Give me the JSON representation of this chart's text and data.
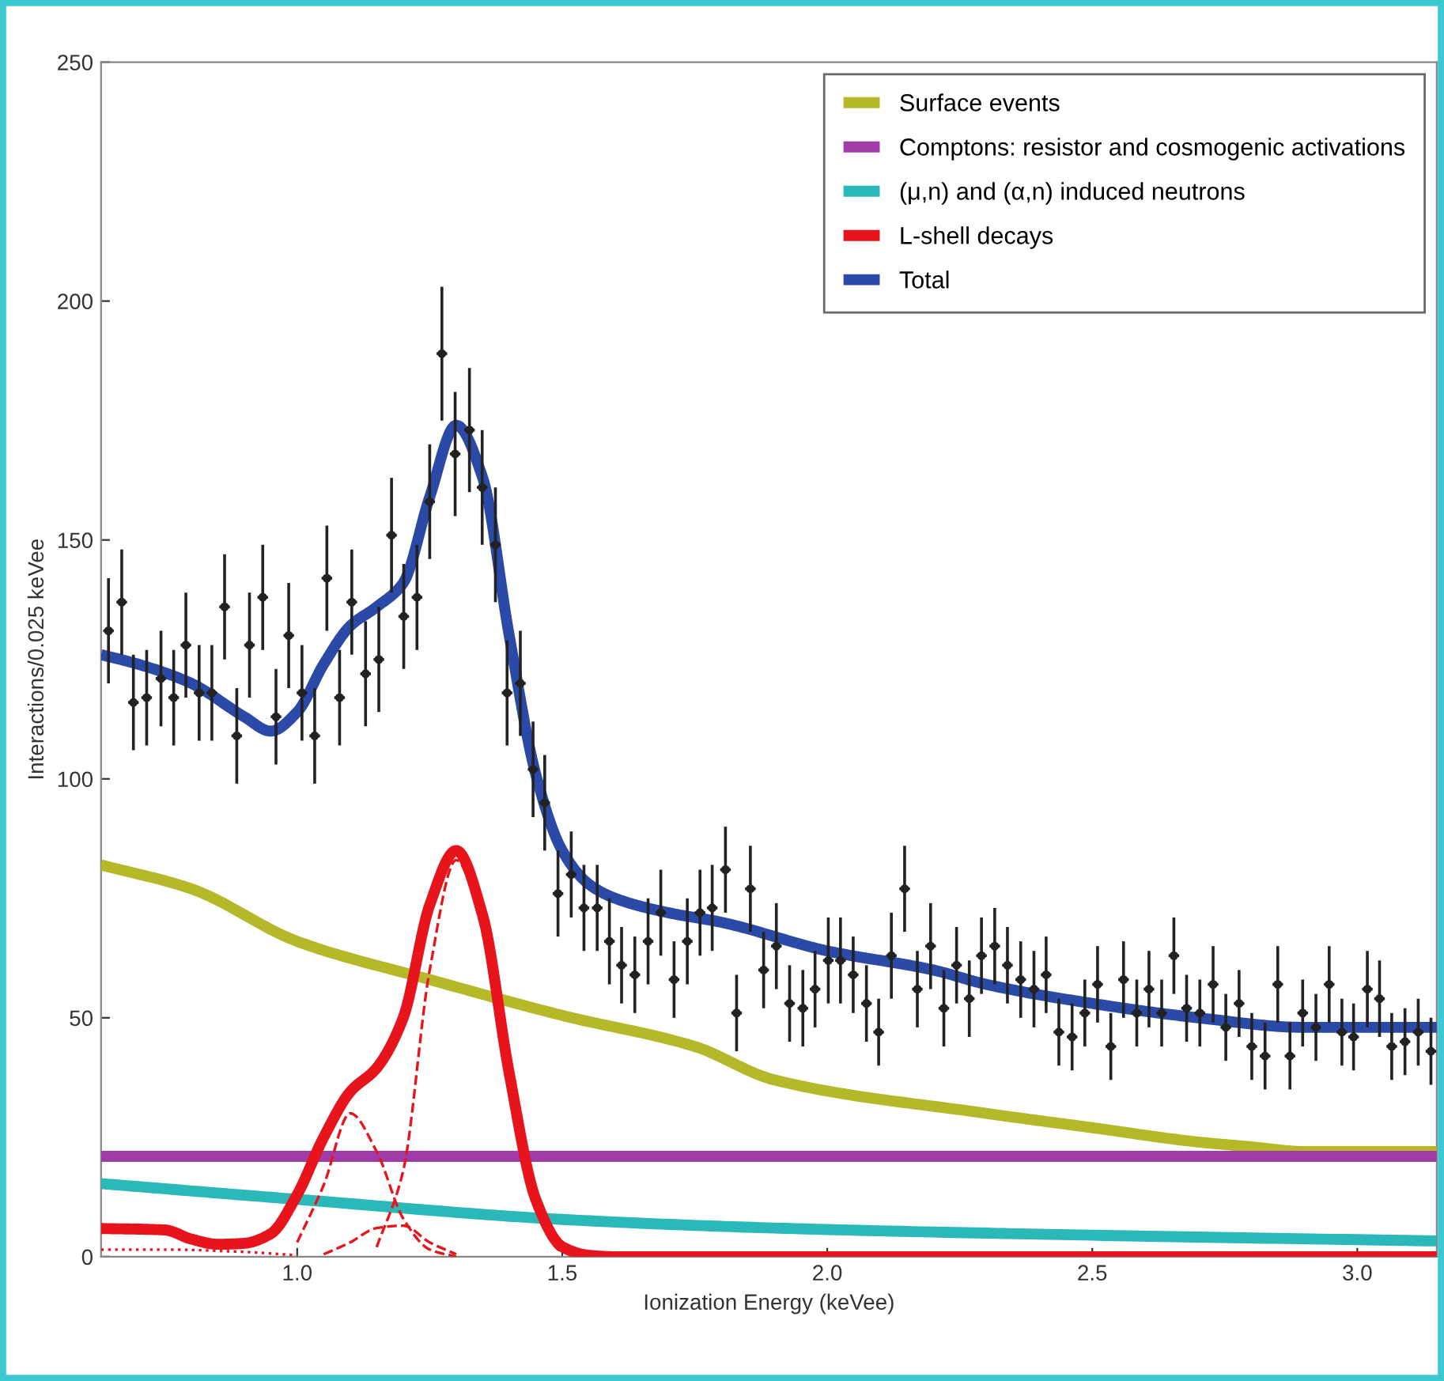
{
  "chart_data": {
    "type": "line",
    "xlabel": "Ionization Energy (keVee)",
    "ylabel": "Interactions/0.025 keVee",
    "xlim": [
      0.63,
      3.15
    ],
    "ylim": [
      0,
      250
    ],
    "xticks": [
      {
        "value": 1.0,
        "label": "1.0"
      },
      {
        "value": 1.5,
        "label": "1.5"
      },
      {
        "value": 2.0,
        "label": "2.0"
      },
      {
        "value": 2.5,
        "label": "2.5"
      },
      {
        "value": 3.0,
        "label": "3.0"
      }
    ],
    "yticks": [
      0,
      50,
      100,
      150,
      200,
      250
    ],
    "grid": false,
    "legend": "top right",
    "marker": "none",
    "series": [
      {
        "type": "scatter",
        "color": "#222222",
        "marker": "circle",
        "x": [
          0.644,
          0.669,
          0.691,
          0.716,
          0.743,
          0.767,
          0.79,
          0.815,
          0.839,
          0.863,
          0.886,
          0.91,
          0.935,
          0.96,
          0.984,
          1.009,
          1.033,
          1.056,
          1.08,
          1.103,
          1.129,
          1.154,
          1.178,
          1.201,
          1.226,
          1.25,
          1.273,
          1.298,
          1.325,
          1.349,
          1.374,
          1.396,
          1.421,
          1.445,
          1.467,
          1.492,
          1.517,
          1.541,
          1.566,
          1.589,
          1.612,
          1.637,
          1.662,
          1.686,
          1.711,
          1.736,
          1.76,
          1.783,
          1.808,
          1.829,
          1.855,
          1.88,
          1.904,
          1.929,
          1.954,
          1.977,
          2.002,
          2.025,
          2.049,
          2.074,
          2.097,
          2.121,
          2.146,
          2.17,
          2.195,
          2.22,
          2.244,
          2.268,
          2.291,
          2.316,
          2.34,
          2.365,
          2.39,
          2.413,
          2.437,
          2.462,
          2.486,
          2.51,
          2.535,
          2.559,
          2.584,
          2.607,
          2.631,
          2.654,
          2.678,
          2.703,
          2.728,
          2.752,
          2.777,
          2.801,
          2.826,
          2.85,
          2.873,
          2.897,
          2.922,
          2.947,
          2.971,
          2.993,
          3.019,
          3.042,
          3.065,
          3.09,
          3.115,
          3.139
        ],
        "values": [
          131,
          137,
          116,
          117,
          121,
          117,
          128,
          118,
          118,
          136,
          109,
          128,
          138,
          113,
          130,
          118,
          109,
          142,
          117,
          137,
          122,
          125,
          151,
          134,
          138,
          158,
          189,
          168,
          173,
          161,
          149,
          118,
          120,
          102,
          95,
          76,
          80,
          73,
          73,
          66,
          61,
          59,
          66,
          72,
          58,
          66,
          72,
          73,
          81,
          51,
          77,
          60,
          65,
          53,
          52,
          56,
          62,
          62,
          59,
          53,
          47,
          63,
          77,
          56,
          65,
          52,
          61,
          54,
          63,
          65,
          61,
          58,
          56,
          59,
          47,
          46,
          51,
          57,
          44,
          58,
          51,
          56,
          51,
          63,
          52,
          51,
          57,
          48,
          53,
          44,
          42,
          57,
          42,
          51,
          48,
          57,
          47,
          46,
          56,
          54,
          44,
          45,
          47,
          43
        ],
        "errors": [
          11,
          11,
          10,
          10,
          10,
          10,
          11,
          10,
          10,
          11,
          10,
          11,
          11,
          10,
          11,
          10,
          10,
          11,
          10,
          11,
          11,
          11,
          12,
          11,
          11,
          12,
          14,
          13,
          13,
          12,
          12,
          11,
          11,
          10,
          10,
          9,
          9,
          9,
          9,
          9,
          8,
          8,
          9,
          9,
          8,
          9,
          9,
          9,
          9,
          8,
          9,
          8,
          9,
          8,
          8,
          8,
          9,
          9,
          8,
          8,
          7,
          9,
          9,
          8,
          9,
          8,
          8,
          8,
          8,
          8,
          8,
          8,
          8,
          8,
          7,
          7,
          7,
          8,
          7,
          8,
          7,
          8,
          7,
          8,
          7,
          7,
          8,
          7,
          7,
          7,
          7,
          8,
          7,
          7,
          7,
          8,
          7,
          7,
          8,
          8,
          7,
          7,
          7,
          7
        ],
        "xerrors": [
          0.01,
          0.01,
          0.01,
          0.01,
          0.01,
          0.01,
          0.01,
          0.01,
          0.01,
          0.01,
          0.01,
          0.01,
          0.01,
          0.01,
          0.01,
          0.01,
          0.01,
          0.01,
          0.01,
          0.01,
          0.01,
          0.01,
          0.01,
          0.01,
          0.01,
          0.01,
          0.01,
          0.01,
          0.01,
          0.01,
          0.01,
          0.01,
          0.01,
          0.01,
          0.01,
          0.01,
          0.01,
          0.01,
          0.01,
          0.01,
          0.01,
          0.01,
          0.01,
          0.01,
          0.01,
          0.01,
          0.01,
          0.01,
          0.01,
          0.01,
          0.01,
          0.01,
          0.01,
          0.01,
          0.01,
          0.01,
          0.01,
          0.01,
          0.01,
          0.01,
          0.01,
          0.01,
          0.01,
          0.01,
          0.01,
          0.01,
          0.01,
          0.01,
          0.01,
          0.01,
          0.01,
          0.01,
          0.01,
          0.01,
          0.01,
          0.01,
          0.01,
          0.01,
          0.01,
          0.01,
          0.01,
          0.01,
          0.01,
          0.01,
          0.01,
          0.01,
          0.01,
          0.01,
          0.01,
          0.01,
          0.01,
          0.01,
          0.01,
          0.01,
          0.01,
          0.01,
          0.01,
          0.01,
          0.01,
          0.01,
          0.01,
          0.01,
          0.01,
          0.01
        ]
      },
      {
        "name": "Surface events",
        "color": "#b5b829",
        "x": [
          0.63,
          0.8,
          1.0,
          1.25,
          1.5,
          1.75,
          1.9,
          2.3,
          2.5,
          2.7,
          2.8,
          2.9,
          3.15
        ],
        "values": [
          82,
          77,
          66,
          58,
          50.5,
          44,
          37,
          30,
          27,
          24,
          23,
          22,
          22
        ]
      },
      {
        "name": "Comptons: resistor and cosmogenic activations",
        "color": "#a03ca8",
        "x": [
          0.63,
          3.15
        ],
        "values": [
          21,
          21
        ]
      },
      {
        "name": "(μ,n) and (α,n) induced neutrons",
        "color": "#2ab8b8",
        "x": [
          0.63,
          1.0,
          1.5,
          1.9,
          2.5,
          3.15
        ],
        "values": [
          15.3,
          12,
          7.8,
          6,
          4.5,
          3.3
        ]
      },
      {
        "name": "L-shell decays",
        "color": "#e8141c",
        "x": [
          0.63,
          0.75,
          0.8,
          0.85,
          0.9,
          0.95,
          1.0,
          1.05,
          1.1,
          1.15,
          1.2,
          1.25,
          1.3,
          1.35,
          1.4,
          1.45,
          1.5,
          1.55,
          1.6,
          3.15
        ],
        "values": [
          5.9,
          5.6,
          3.7,
          2.6,
          2.8,
          4.8,
          13,
          25,
          34.5,
          39.5,
          50,
          73.6,
          85,
          71.4,
          38.4,
          12,
          2.1,
          0.3,
          0,
          0
        ]
      },
      {
        "name": "Total",
        "color": "#2b4aa8",
        "x": [
          0.63,
          0.7,
          0.8,
          0.9,
          0.95,
          1.0,
          1.05,
          1.1,
          1.15,
          1.2,
          1.25,
          1.3,
          1.35,
          1.4,
          1.45,
          1.5,
          1.55,
          1.6,
          1.7,
          1.8,
          2.0,
          2.2,
          2.3,
          2.5,
          2.7,
          2.9,
          3.15
        ],
        "values": [
          126,
          124,
          120,
          113,
          110,
          114,
          124,
          132,
          136,
          141,
          159,
          174,
          163,
          130,
          101,
          85,
          78,
          75,
          72,
          70,
          64,
          60,
          57,
          53,
          50,
          48,
          48
        ]
      },
      {
        "color": "#e8141c",
        "line_style": "dashed",
        "x": [
          1.0,
          1.05,
          1.1,
          1.15,
          1.2,
          1.25,
          1.3
        ],
        "values": [
          3,
          15,
          30,
          22,
          8,
          1.5,
          0
        ]
      },
      {
        "color": "#e8141c",
        "line_style": "dashed",
        "x": [
          1.15,
          1.2,
          1.25,
          1.3,
          1.35,
          1.4,
          1.45,
          1.5,
          1.55
        ],
        "values": [
          2,
          18,
          60,
          83,
          68,
          36,
          10,
          1,
          0
        ]
      },
      {
        "color": "#e8141c",
        "line_style": "dashed",
        "x": [
          1.05,
          1.1,
          1.15,
          1.2,
          1.25,
          1.3
        ],
        "values": [
          0.5,
          3,
          6,
          6.5,
          3,
          0.5
        ]
      },
      {
        "color": "#e8141c",
        "line_style": "dotted",
        "x": [
          0.63,
          0.75,
          0.9,
          1.0
        ],
        "values": [
          1.5,
          1.5,
          1.0,
          0.3
        ]
      }
    ]
  }
}
